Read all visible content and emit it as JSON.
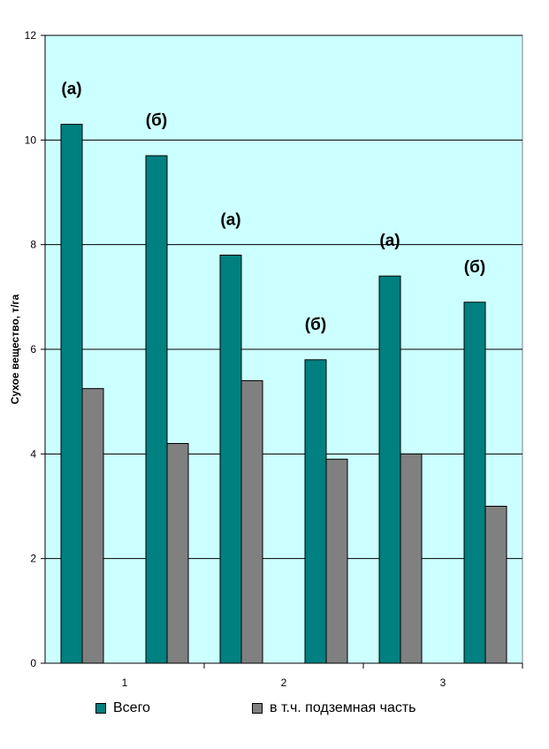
{
  "chart_data": {
    "type": "bar",
    "categories": [
      "1",
      "2",
      "3"
    ],
    "groups": [
      {
        "category": "1",
        "annotations": [
          "(а)",
          "(б)"
        ],
        "total": [
          10.3,
          9.7
        ],
        "underground": [
          5.25,
          4.2
        ]
      },
      {
        "category": "2",
        "annotations": [
          "(а)",
          "(б)"
        ],
        "total": [
          7.8,
          5.8
        ],
        "underground": [
          5.4,
          3.9
        ]
      },
      {
        "category": "3",
        "annotations": [
          "(а)",
          "(б)"
        ],
        "total": [
          7.4,
          6.9
        ],
        "underground": [
          4.0,
          3.0
        ]
      }
    ],
    "series": [
      {
        "name": "Всего",
        "color": "#008080"
      },
      {
        "name": "в т.ч. подземная часть",
        "color": "#808080"
      }
    ],
    "ylabel": "Сухое вещество, т/га",
    "xlabel": "",
    "ylim": [
      0,
      12
    ],
    "yticks": [
      "0",
      "2",
      "4",
      "6",
      "8",
      "10",
      "12"
    ],
    "grid": true,
    "plot_background": "#ccffff",
    "legend_position": "bottom"
  }
}
